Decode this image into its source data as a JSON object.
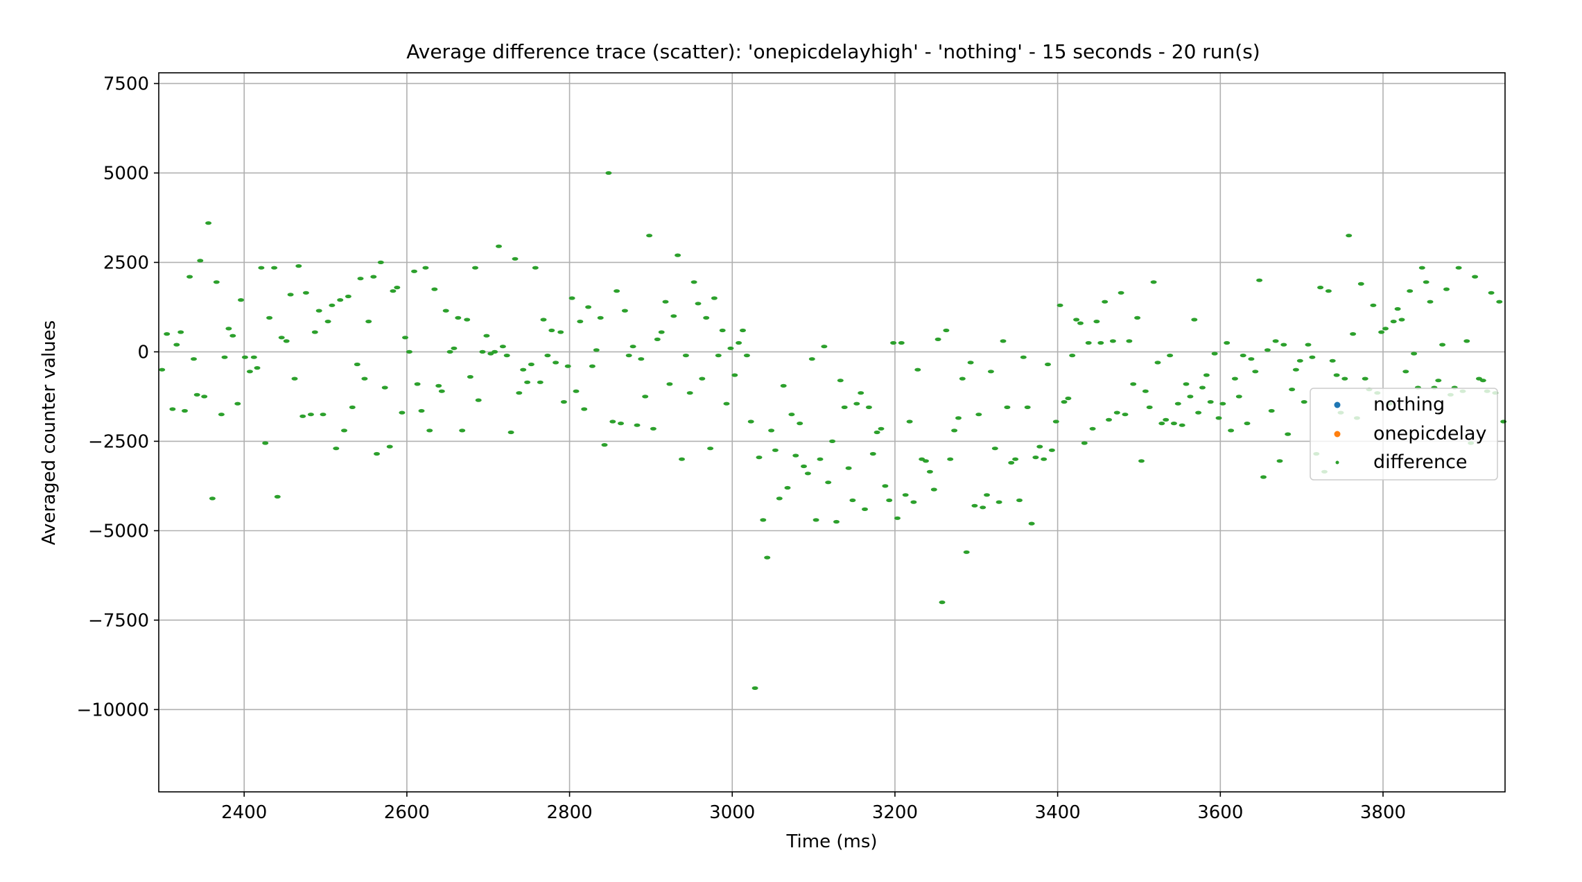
{
  "chart_data": {
    "type": "scatter",
    "title": "Average difference trace (scatter): 'onepicdelayhigh' - 'nothing' - 15 seconds - 20 run(s)",
    "xlabel": "Time (ms)",
    "ylabel": "Averaged counter values",
    "xlim": [
      2295,
      3950
    ],
    "ylim": [
      -12300,
      7800
    ],
    "xticks": [
      2400,
      2600,
      2800,
      3000,
      3200,
      3400,
      3600,
      3800
    ],
    "yticks": [
      7500,
      5000,
      2500,
      0,
      -2500,
      -5000,
      -7500,
      -10000
    ],
    "ytick_labels": [
      "7500",
      "5000",
      "2500",
      "0",
      "−2500",
      "−5000",
      "−7500",
      "−10000"
    ],
    "grid": true,
    "legend_position": "right",
    "legend": [
      "nothing",
      "onepicdelay",
      "difference"
    ],
    "colors": {
      "nothing": "#1f77b4",
      "onepicdelay": "#ff7f0e",
      "difference": "#2ca02c"
    },
    "series": [
      {
        "name": "nothing",
        "x": [],
        "y": []
      },
      {
        "name": "onepicdelay",
        "x": [],
        "y": []
      },
      {
        "name": "difference",
        "x": [
          2299,
          2305,
          2312,
          2317,
          2322,
          2327,
          2333,
          2338,
          2342,
          2346,
          2351,
          2356,
          2361,
          2366,
          2372,
          2376,
          2381,
          2386,
          2392,
          2396,
          2401,
          2407,
          2412,
          2416,
          2421,
          2426,
          2431,
          2437,
          2441,
          2446,
          2452,
          2457,
          2462,
          2467,
          2472,
          2476,
          2482,
          2487,
          2492,
          2497,
          2503,
          2508,
          2513,
          2518,
          2523,
          2528,
          2533,
          2539,
          2543,
          2548,
          2553,
          2559,
          2563,
          2568,
          2573,
          2579,
          2583,
          2588,
          2594,
          2598,
          2603,
          2609,
          2613,
          2618,
          2623,
          2628,
          2634,
          2639,
          2643,
          2648,
          2653,
          2658,
          2663,
          2668,
          2674,
          2678,
          2684,
          2688,
          2693,
          2698,
          2703,
          2708,
          2713,
          2718,
          2723,
          2728,
          2733,
          2738,
          2743,
          2748,
          2753,
          2758,
          2764,
          2768,
          2773,
          2778,
          2783,
          2789,
          2793,
          2798,
          2803,
          2808,
          2813,
          2818,
          2823,
          2828,
          2833,
          2838,
          2843,
          2848,
          2853,
          2858,
          2863,
          2868,
          2873,
          2878,
          2883,
          2888,
          2893,
          2898,
          2903,
          2908,
          2913,
          2918,
          2923,
          2928,
          2933,
          2938,
          2943,
          2948,
          2953,
          2958,
          2963,
          2968,
          2973,
          2978,
          2983,
          2988,
          2993,
          2998,
          3003,
          3008,
          3013,
          3018,
          3023,
          3028,
          3033,
          3038,
          3043,
          3048,
          3053,
          3058,
          3063,
          3068,
          3073,
          3078,
          3083,
          3088,
          3093,
          3098,
          3103,
          3108,
          3113,
          3118,
          3123,
          3128,
          3133,
          3138,
          3143,
          3148,
          3153,
          3158,
          3163,
          3168,
          3173,
          3178,
          3183,
          3188,
          3193,
          3198,
          3203,
          3208,
          3213,
          3218,
          3223,
          3228,
          3233,
          3238,
          3243,
          3248,
          3253,
          3258,
          3263,
          3268,
          3273,
          3278,
          3283,
          3288,
          3293,
          3298,
          3303,
          3308,
          3313,
          3318,
          3323,
          3328,
          3333,
          3338,
          3343,
          3348,
          3353,
          3358,
          3363,
          3368,
          3373,
          3378,
          3383,
          3388,
          3393,
          3398,
          3403,
          3408,
          3413,
          3418,
          3423,
          3428,
          3433,
          3438,
          3443,
          3448,
          3453,
          3458,
          3463,
          3468,
          3473,
          3478,
          3483,
          3488,
          3493,
          3498,
          3503,
          3508,
          3513,
          3518,
          3523,
          3528,
          3533,
          3538,
          3543,
          3548,
          3553,
          3558,
          3563,
          3568,
          3573,
          3578,
          3583,
          3588,
          3593,
          3598,
          3603,
          3608,
          3613,
          3618,
          3623,
          3628,
          3633,
          3638,
          3643,
          3648,
          3653,
          3658,
          3663,
          3668,
          3673,
          3678,
          3683,
          3688,
          3693,
          3698,
          3703,
          3708,
          3713,
          3718,
          3723,
          3728,
          3733,
          3738,
          3743,
          3748,
          3753,
          3758,
          3763,
          3768,
          3773,
          3778,
          3783,
          3788,
          3793,
          3798,
          3803,
          3808,
          3813,
          3818,
          3823,
          3828,
          3833,
          3838,
          3843,
          3848,
          3853,
          3858,
          3863,
          3868,
          3873,
          3878,
          3883,
          3888,
          3893,
          3898,
          3903,
          3908,
          3913,
          3918,
          3923,
          3928,
          3933,
          3938,
          3943,
          3948
        ],
        "y": [
          -500,
          500,
          -1600,
          200,
          550,
          -1650,
          2100,
          -200,
          -1200,
          2550,
          -1250,
          3600,
          -4100,
          1950,
          -1750,
          -150,
          650,
          450,
          -1450,
          1450,
          -150,
          -550,
          -150,
          -450,
          2350,
          -2550,
          950,
          2350,
          -4050,
          400,
          300,
          1600,
          -750,
          2400,
          -1800,
          1650,
          -1750,
          550,
          1150,
          -1750,
          850,
          1300,
          -2700,
          1450,
          -2200,
          1550,
          -1550,
          -350,
          2050,
          -750,
          850,
          2100,
          -2850,
          2500,
          -1000,
          -2650,
          1700,
          1800,
          -1700,
          400,
          0,
          2250,
          -900,
          -1650,
          2350,
          -2200,
          1750,
          -950,
          -1100,
          1150,
          0,
          100,
          950,
          -2200,
          900,
          -700,
          2350,
          -1350,
          0,
          450,
          -50,
          0,
          2950,
          150,
          -100,
          -2250,
          2600,
          -1150,
          -500,
          -850,
          -350,
          2350,
          -850,
          900,
          -100,
          600,
          -300,
          550,
          -1400,
          -400,
          1500,
          -1100,
          850,
          -1600,
          1250,
          -400,
          50,
          950,
          -2600,
          5000,
          -1950,
          1700,
          -2000,
          1150,
          -100,
          150,
          -2050,
          -200,
          -1250,
          3250,
          -2150,
          350,
          550,
          1400,
          -900,
          1000,
          2700,
          -3000,
          -100,
          -1150,
          1950,
          1350,
          -750,
          950,
          -2700,
          1500,
          -100,
          600,
          -1450,
          100,
          -650,
          250,
          600,
          -100,
          -1950,
          -9400,
          -2950,
          -4700,
          -5750,
          -2200,
          -2750,
          -4100,
          -950,
          -3800,
          -1750,
          -2900,
          -2000,
          -3200,
          -3400,
          -200,
          -4700,
          -3000,
          150,
          -3650,
          -2500,
          -4750,
          -800,
          -1550,
          -3250,
          -4150,
          -1450,
          -1150,
          -4400,
          -1550,
          -2850,
          -2250,
          -2150,
          -3750,
          -4150,
          250,
          -4650,
          250,
          -4000,
          -1950,
          -4200,
          -500,
          -3000,
          -3050,
          -3350,
          -3850,
          350,
          -7000,
          600,
          -3000,
          -2200,
          -1850,
          -750,
          -5600,
          -300,
          -4300,
          -1750,
          -4350,
          -4000,
          -550,
          -2700,
          -4200,
          300,
          -1550,
          -3100,
          -3000,
          -4150,
          -150,
          -1550,
          -4800,
          -2950,
          -2650,
          -3000,
          -350,
          -2750,
          -1950,
          1300,
          -1400,
          -1300,
          -100,
          900,
          800,
          -2550,
          250,
          -2150,
          850,
          250,
          1400,
          -1900,
          300,
          -1700,
          1650,
          -1750,
          300,
          -900,
          950,
          -3050,
          -1100,
          -1550,
          1950,
          -300,
          -2000,
          -1900,
          -100,
          -2000,
          -1450,
          -2050,
          -900,
          -1250,
          900,
          -1700,
          -1000,
          -650,
          -1400,
          -50,
          -1850,
          -1450,
          250,
          -2200,
          -750,
          -1250,
          -100,
          -2000,
          -200,
          -550,
          2000,
          -3500,
          50,
          -1650,
          300,
          -3050,
          200,
          -2300,
          -1050,
          -500,
          -250,
          -1400,
          200,
          -150,
          -2850,
          1800,
          -3350,
          1700,
          -250,
          -650,
          -1700,
          -750,
          3250,
          500,
          -1850,
          1900,
          -750,
          -1050,
          1300,
          -1150,
          550,
          650,
          -1450,
          850,
          1200,
          900,
          -550,
          1700,
          -50,
          -1000,
          2350,
          1950,
          1400,
          -1000,
          -800,
          200,
          1750,
          -1200,
          -1000,
          2350,
          -1100,
          300,
          -2550,
          2100,
          -750,
          -800,
          -1100,
          1650,
          -1150,
          1400,
          -1950
        ]
      }
    ]
  }
}
